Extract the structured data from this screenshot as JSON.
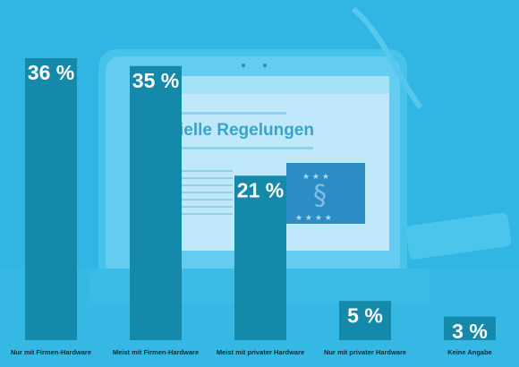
{
  "chart_data": {
    "type": "bar",
    "categories": [
      "Nur mit Firmen-Hardware",
      "Meist mit Firmen-Hardware",
      "Meist mit privater Hardware",
      "Nur mit privater Hardware",
      "Keine Angabe"
    ],
    "values": [
      36,
      35,
      21,
      5,
      3
    ],
    "value_labels": [
      "36 %",
      "35 %",
      "21 %",
      "5 %",
      "3 %"
    ],
    "ylim": [
      0,
      40
    ],
    "grid": false,
    "legend": "none",
    "colors": {
      "bar": "#1589aa",
      "background": "#31b6e4",
      "value_text": "#ffffff",
      "category_text": "#0b2a3a"
    }
  },
  "background_photo": {
    "heading_text": "ielle Regelungen"
  }
}
